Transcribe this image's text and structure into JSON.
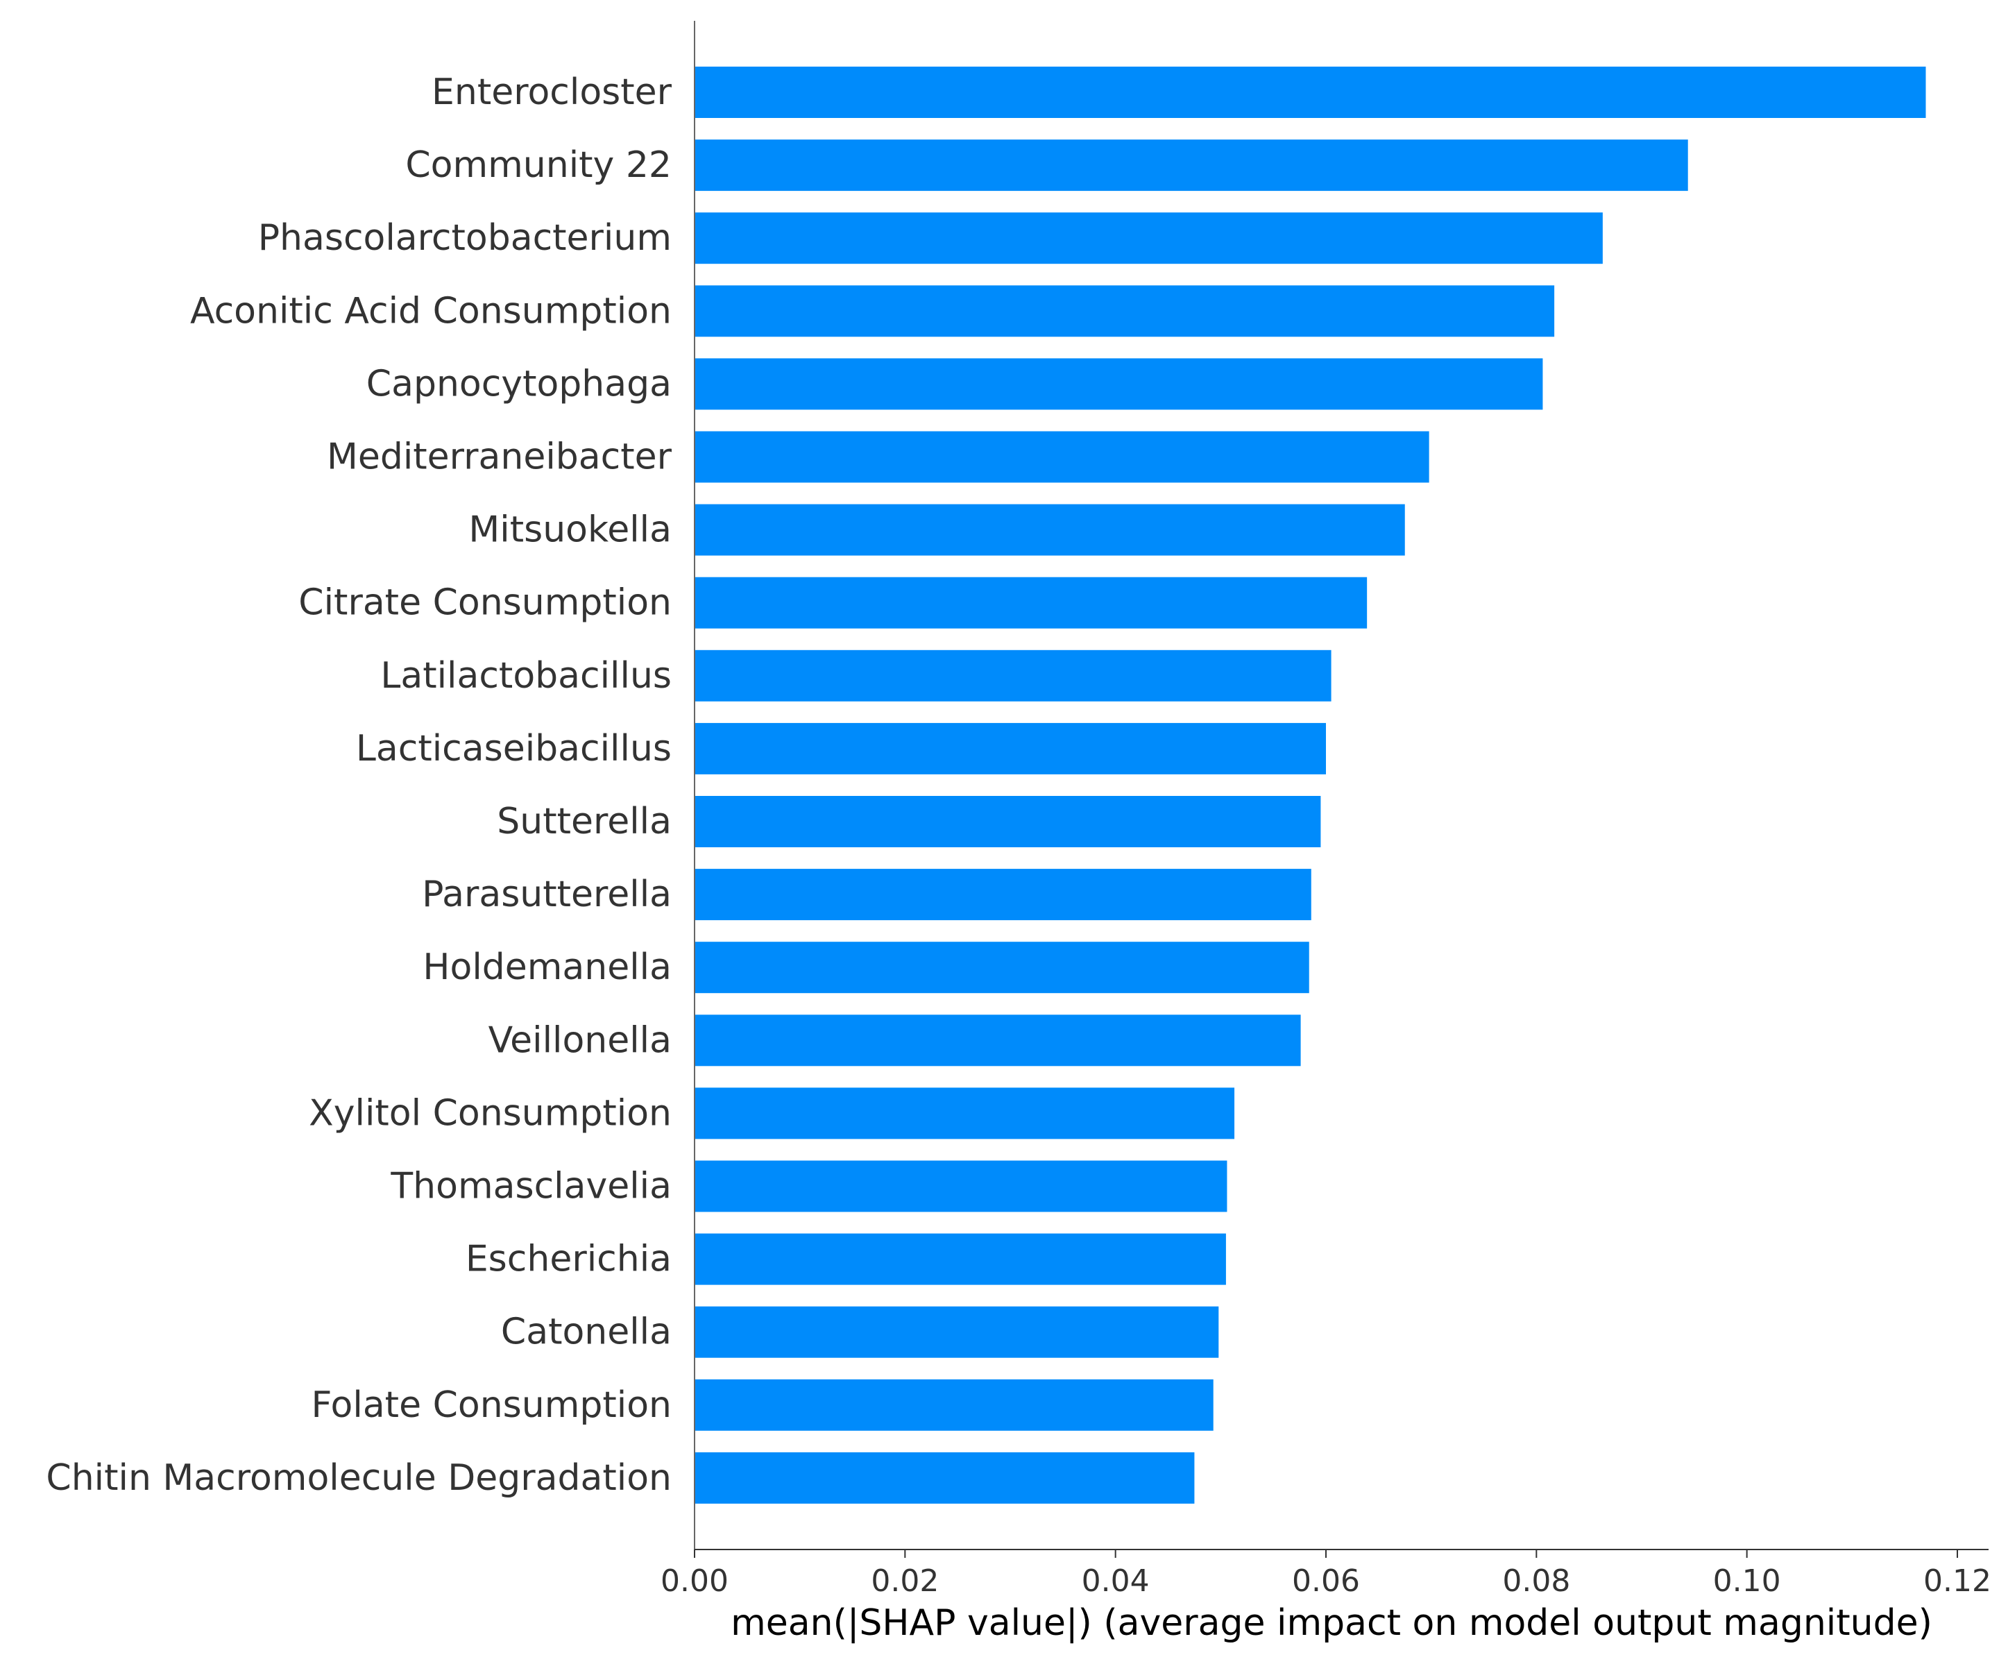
{
  "chart_data": {
    "type": "bar",
    "orientation": "horizontal",
    "title": "",
    "xlabel": "mean(|SHAP value|) (average impact on model output magnitude)",
    "ylabel": "",
    "xlim": [
      0,
      0.1225
    ],
    "xticks": [
      0.0,
      0.02,
      0.04,
      0.06,
      0.08,
      0.1,
      0.12
    ],
    "xtick_labels": [
      "0.00",
      "0.02",
      "0.04",
      "0.06",
      "0.08",
      "0.10",
      "0.12"
    ],
    "grid": false,
    "legend": "none",
    "bar_color": "#008bfb",
    "categories": [
      "Enterocloster",
      "Community 22",
      "Phascolarctobacterium",
      "Aconitic Acid Consumption",
      "Capnocytophaga",
      "Mediterraneibacter",
      "Mitsuokella",
      "Citrate Consumption",
      "Latilactobacillus",
      "Lacticaseibacillus",
      "Sutterella",
      "Parasutterella",
      "Holdemanella",
      "Veillonella",
      "Xylitol Consumption",
      "Thomasclavelia",
      "Escherichia",
      "Catonella",
      "Folate Consumption",
      "Chitin Macromolecule Degradation"
    ],
    "values": [
      0.117,
      0.0944,
      0.0863,
      0.0817,
      0.0806,
      0.0698,
      0.0675,
      0.0639,
      0.0605,
      0.06,
      0.0595,
      0.0586,
      0.0584,
      0.0576,
      0.0513,
      0.0506,
      0.0505,
      0.0498,
      0.0493,
      0.0475
    ]
  }
}
